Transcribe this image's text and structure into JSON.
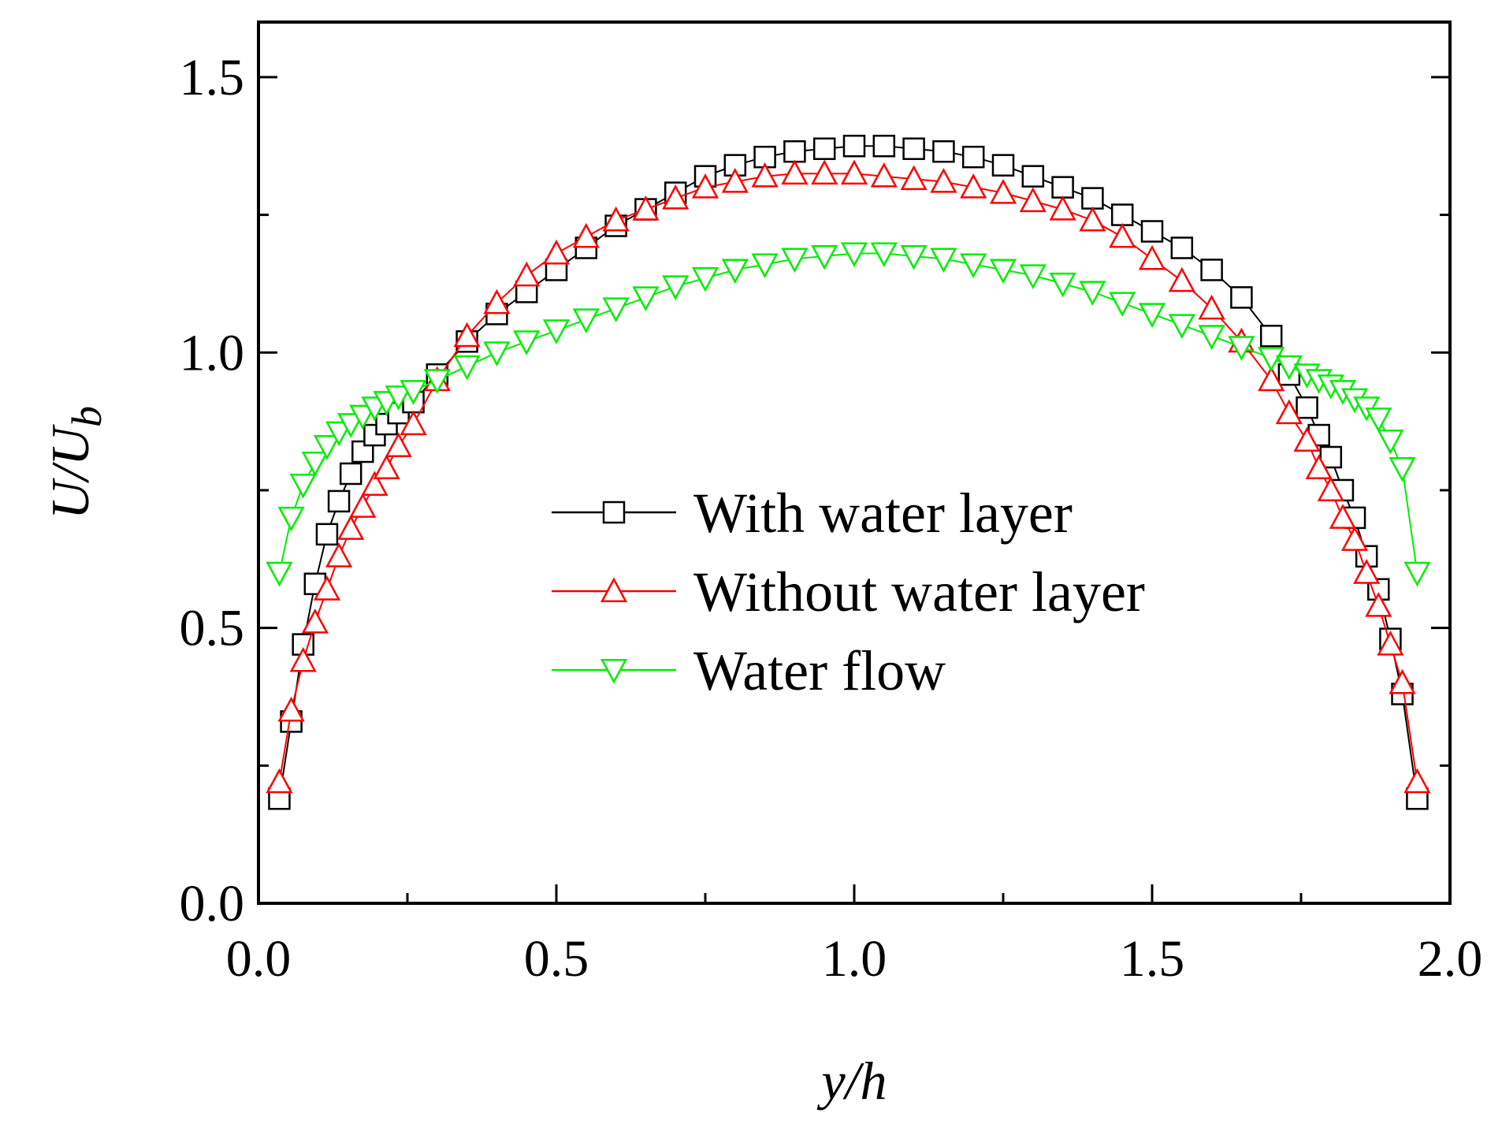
{
  "chart_data": {
    "type": "scatter",
    "title": "",
    "xlabel": "y/h",
    "ylabel": "U/U_b",
    "ylabel_parts": {
      "main": "U/U",
      "sub": "b"
    },
    "xlim": [
      0.0,
      2.0
    ],
    "ylim": [
      0.0,
      1.6
    ],
    "x_ticks": [
      0.0,
      0.5,
      1.0,
      1.5,
      2.0
    ],
    "x_tick_labels": [
      "0.0",
      "0.5",
      "1.0",
      "1.5",
      "2.0"
    ],
    "x_minor_ticks": [
      0.25,
      0.75,
      1.25,
      1.75
    ],
    "y_ticks": [
      0.0,
      0.5,
      1.0,
      1.5
    ],
    "y_tick_labels": [
      "0.0",
      "0.5",
      "1.0",
      "1.5"
    ],
    "y_minor_ticks": [
      0.25,
      0.75,
      1.25
    ],
    "grid": false,
    "legend_position": "center",
    "series": [
      {
        "name": "With water layer",
        "color": "#000000",
        "marker": "square",
        "x": [
          0.035,
          0.055,
          0.075,
          0.095,
          0.115,
          0.135,
          0.155,
          0.175,
          0.195,
          0.215,
          0.235,
          0.26,
          0.3,
          0.35,
          0.4,
          0.45,
          0.5,
          0.55,
          0.6,
          0.65,
          0.7,
          0.75,
          0.8,
          0.85,
          0.9,
          0.95,
          1.0,
          1.05,
          1.1,
          1.15,
          1.2,
          1.25,
          1.3,
          1.35,
          1.4,
          1.45,
          1.5,
          1.55,
          1.6,
          1.65,
          1.7,
          1.73,
          1.76,
          1.78,
          1.8,
          1.82,
          1.84,
          1.86,
          1.88,
          1.9,
          1.92,
          1.945
        ],
        "y": [
          0.19,
          0.33,
          0.47,
          0.58,
          0.67,
          0.73,
          0.78,
          0.82,
          0.85,
          0.87,
          0.89,
          0.91,
          0.96,
          1.02,
          1.07,
          1.11,
          1.15,
          1.19,
          1.23,
          1.26,
          1.29,
          1.32,
          1.34,
          1.355,
          1.365,
          1.37,
          1.375,
          1.375,
          1.37,
          1.365,
          1.355,
          1.34,
          1.32,
          1.3,
          1.28,
          1.25,
          1.22,
          1.19,
          1.15,
          1.1,
          1.03,
          0.96,
          0.9,
          0.85,
          0.81,
          0.75,
          0.7,
          0.63,
          0.57,
          0.48,
          0.38,
          0.19
        ]
      },
      {
        "name": "Without water layer",
        "color": "#ff0000",
        "marker": "triangle-up",
        "x": [
          0.035,
          0.055,
          0.075,
          0.095,
          0.115,
          0.135,
          0.155,
          0.175,
          0.195,
          0.215,
          0.235,
          0.26,
          0.3,
          0.35,
          0.4,
          0.45,
          0.5,
          0.55,
          0.6,
          0.65,
          0.7,
          0.75,
          0.8,
          0.85,
          0.9,
          0.95,
          1.0,
          1.05,
          1.1,
          1.15,
          1.2,
          1.25,
          1.3,
          1.35,
          1.4,
          1.45,
          1.5,
          1.55,
          1.6,
          1.65,
          1.7,
          1.73,
          1.76,
          1.78,
          1.8,
          1.82,
          1.84,
          1.86,
          1.88,
          1.9,
          1.92,
          1.945
        ],
        "y": [
          0.22,
          0.35,
          0.44,
          0.51,
          0.57,
          0.63,
          0.68,
          0.72,
          0.76,
          0.79,
          0.83,
          0.87,
          0.95,
          1.03,
          1.09,
          1.14,
          1.18,
          1.21,
          1.24,
          1.26,
          1.28,
          1.3,
          1.31,
          1.32,
          1.325,
          1.325,
          1.325,
          1.32,
          1.315,
          1.31,
          1.3,
          1.29,
          1.275,
          1.26,
          1.24,
          1.21,
          1.17,
          1.13,
          1.08,
          1.02,
          0.95,
          0.89,
          0.84,
          0.79,
          0.75,
          0.7,
          0.66,
          0.6,
          0.54,
          0.47,
          0.4,
          0.22
        ]
      },
      {
        "name": "Water flow",
        "color": "#00ee00",
        "marker": "triangle-down",
        "x": [
          0.035,
          0.055,
          0.075,
          0.095,
          0.115,
          0.135,
          0.155,
          0.175,
          0.195,
          0.215,
          0.235,
          0.26,
          0.3,
          0.35,
          0.4,
          0.45,
          0.5,
          0.55,
          0.6,
          0.65,
          0.7,
          0.75,
          0.8,
          0.85,
          0.9,
          0.95,
          1.0,
          1.05,
          1.1,
          1.15,
          1.2,
          1.25,
          1.3,
          1.35,
          1.4,
          1.45,
          1.5,
          1.55,
          1.6,
          1.65,
          1.7,
          1.73,
          1.76,
          1.78,
          1.8,
          1.82,
          1.84,
          1.86,
          1.88,
          1.9,
          1.92,
          1.945
        ],
        "y": [
          0.6,
          0.7,
          0.76,
          0.8,
          0.83,
          0.855,
          0.87,
          0.885,
          0.9,
          0.91,
          0.92,
          0.93,
          0.95,
          0.975,
          1.0,
          1.02,
          1.04,
          1.06,
          1.08,
          1.1,
          1.12,
          1.135,
          1.15,
          1.16,
          1.17,
          1.175,
          1.18,
          1.18,
          1.175,
          1.17,
          1.16,
          1.15,
          1.14,
          1.125,
          1.11,
          1.09,
          1.07,
          1.05,
          1.03,
          1.01,
          0.99,
          0.975,
          0.96,
          0.95,
          0.94,
          0.93,
          0.915,
          0.9,
          0.88,
          0.84,
          0.79,
          0.6
        ]
      }
    ]
  }
}
